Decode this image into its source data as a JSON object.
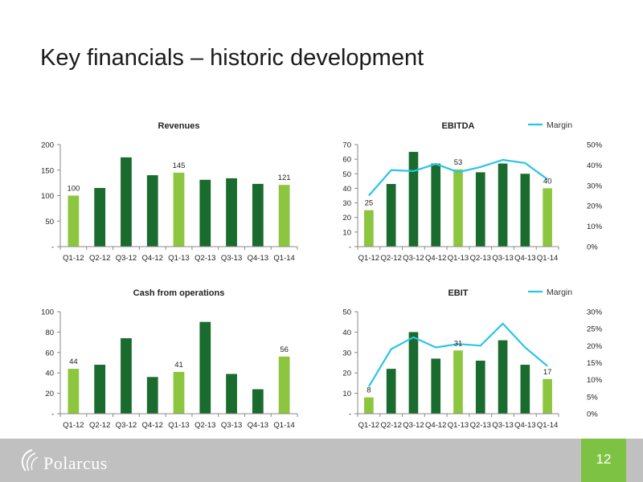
{
  "slide": {
    "title": "Key financials – historic development",
    "page_number": "12"
  },
  "footer": {
    "logo_text": "Polarcus"
  },
  "colors": {
    "bar_dark": "#1a6b2e",
    "bar_light": "#8cc63f",
    "margin_line": "#29c5e6"
  },
  "chart_data": [
    {
      "id": "revenues",
      "type": "bar",
      "title": "Revenues",
      "categories": [
        "Q1-12",
        "Q2-12",
        "Q3-12",
        "Q4-12",
        "Q1-13",
        "Q2-13",
        "Q3-13",
        "Q4-13",
        "Q1-14"
      ],
      "values": [
        100,
        115,
        175,
        140,
        145,
        131,
        134,
        123,
        121
      ],
      "highlight": [
        true,
        false,
        false,
        false,
        true,
        false,
        false,
        false,
        true
      ],
      "data_labels": [
        "100",
        "",
        "",
        "",
        "145",
        "",
        "",
        "",
        "121"
      ],
      "ylim": [
        0,
        200
      ],
      "yticks": [
        "-",
        "50",
        "100",
        "150",
        "200"
      ],
      "ytick_values": [
        0,
        50,
        100,
        150,
        200
      ]
    },
    {
      "id": "ebitda",
      "type": "bar",
      "title": "EBITDA",
      "categories": [
        "Q1-12",
        "Q2-12",
        "Q3-12",
        "Q4-12",
        "Q1-13",
        "Q2-13",
        "Q3-13",
        "Q4-13",
        "Q1-14"
      ],
      "values": [
        25,
        43,
        65,
        57,
        53,
        51,
        57,
        50,
        40
      ],
      "highlight": [
        true,
        false,
        false,
        false,
        true,
        false,
        false,
        false,
        true
      ],
      "data_labels": [
        "25",
        "",
        "",
        "",
        "53",
        "",
        "",
        "",
        "40"
      ],
      "ylim": [
        0,
        70
      ],
      "yticks": [
        "-",
        "10",
        "20",
        "30",
        "40",
        "50",
        "60",
        "70"
      ],
      "ytick_values": [
        0,
        10,
        20,
        30,
        40,
        50,
        60,
        70
      ],
      "margin": {
        "name": "Margin",
        "values": [
          0.25,
          0.375,
          0.37,
          0.405,
          0.365,
          0.39,
          0.425,
          0.41,
          0.33
        ],
        "ylim": [
          0,
          0.5
        ],
        "yticks": [
          "0%",
          "10%",
          "20%",
          "30%",
          "40%",
          "50%"
        ],
        "ytick_values": [
          0,
          0.1,
          0.2,
          0.3,
          0.4,
          0.5
        ]
      }
    },
    {
      "id": "cash",
      "type": "bar",
      "title": "Cash from operations",
      "categories": [
        "Q1-12",
        "Q2-12",
        "Q3-12",
        "Q4-12",
        "Q1-13",
        "Q2-13",
        "Q3-13",
        "Q4-13",
        "Q1-14"
      ],
      "values": [
        44,
        48,
        74,
        36,
        41,
        90,
        39,
        24,
        56
      ],
      "highlight": [
        true,
        false,
        false,
        false,
        true,
        false,
        false,
        false,
        true
      ],
      "data_labels": [
        "44",
        "",
        "",
        "",
        "41",
        "",
        "",
        "",
        "56"
      ],
      "ylim": [
        0,
        100
      ],
      "yticks": [
        "-",
        "20",
        "40",
        "60",
        "80",
        "100"
      ],
      "ytick_values": [
        0,
        20,
        40,
        60,
        80,
        100
      ]
    },
    {
      "id": "ebit",
      "type": "bar",
      "title": "EBIT",
      "categories": [
        "Q1-12",
        "Q2-12",
        "Q3-12",
        "Q4-12",
        "Q1-13",
        "Q2-13",
        "Q3-13",
        "Q4-13",
        "Q1-14"
      ],
      "values": [
        8,
        22,
        40,
        27,
        31,
        26,
        36,
        24,
        17
      ],
      "highlight": [
        true,
        false,
        false,
        false,
        true,
        false,
        false,
        false,
        true
      ],
      "data_labels": [
        "8",
        "",
        "",
        "",
        "31",
        "",
        "",
        "",
        "17"
      ],
      "ylim": [
        0,
        50
      ],
      "yticks": [
        "-",
        "10",
        "20",
        "30",
        "40",
        "50"
      ],
      "ytick_values": [
        0,
        10,
        20,
        30,
        40,
        50
      ],
      "margin": {
        "name": "Margin",
        "values": [
          0.08,
          0.19,
          0.225,
          0.195,
          0.205,
          0.2,
          0.265,
          0.195,
          0.14
        ],
        "ylim": [
          0,
          0.3
        ],
        "yticks": [
          "0%",
          "5%",
          "10%",
          "15%",
          "20%",
          "25%",
          "30%"
        ],
        "ytick_values": [
          0,
          0.05,
          0.1,
          0.15,
          0.2,
          0.25,
          0.3
        ]
      }
    }
  ]
}
